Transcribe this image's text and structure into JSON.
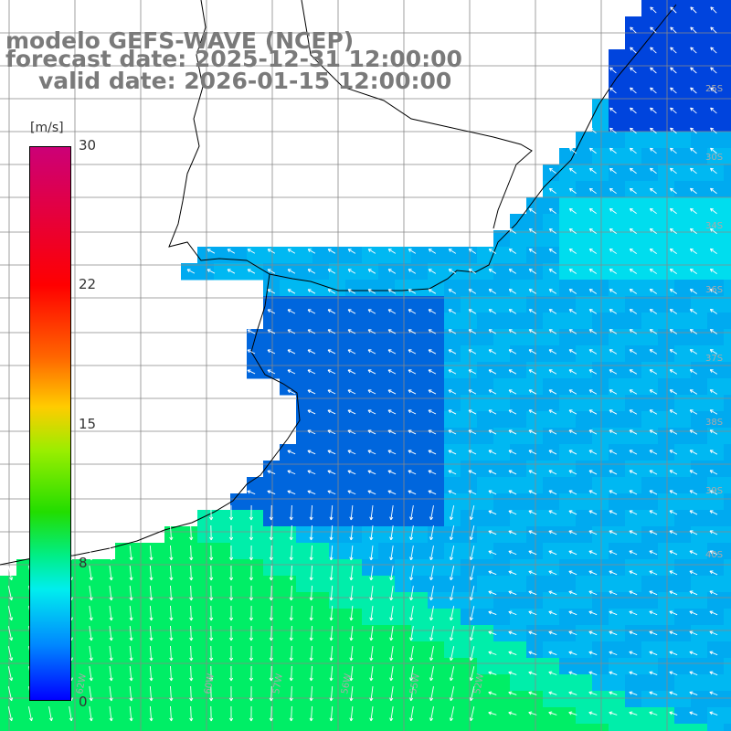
{
  "title": {
    "line1": "modelo GEFS-WAVE (NCEP)",
    "line2": "forecast date: 2025-12-31 12:00:00",
    "line3": "valid date: 2026-01-15 12:00:00"
  },
  "colorbar": {
    "units": "[m/s]",
    "ticks": [
      "30",
      "22",
      "15",
      "8",
      "0"
    ],
    "colors": [
      "#cc0077",
      "#ff0000",
      "#ff6600",
      "#ffcc00",
      "#99ee00",
      "#22dd00",
      "#00ee88",
      "#00eeee",
      "#0088ff",
      "#0000ff"
    ]
  },
  "map": {
    "field": "wind speed",
    "land_color": "#ffffff",
    "grid_color": "#888888",
    "coast_color": "#000000",
    "arrow_color": "#ffffff",
    "right_edge_labels": [
      "25S",
      "30S",
      "34S",
      "36S",
      "37S",
      "38S",
      "39S",
      "40S"
    ],
    "bottom_edge_labels": [
      "62W",
      "60W",
      "57W",
      "56W",
      "55W",
      "52W"
    ]
  }
}
